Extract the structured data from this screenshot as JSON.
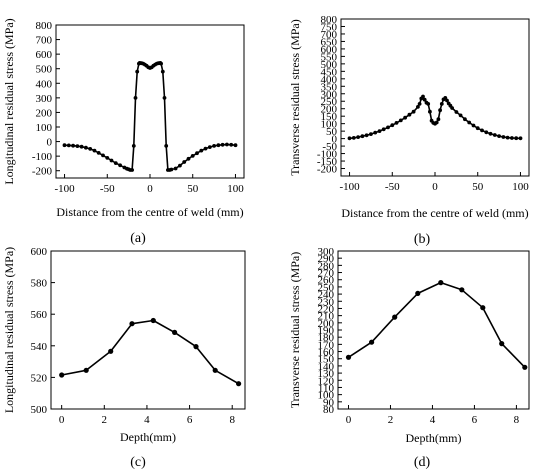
{
  "chart_data": [
    {
      "type": "line",
      "panel_label": "(a)",
      "xlabel": "Distance from the centre of weld (mm)",
      "ylabel": "Longitudinal residual stress (MPa)",
      "xlim": [
        -110,
        110
      ],
      "ylim": [
        -250,
        800
      ],
      "xticks": [
        -100,
        -50,
        0,
        50,
        100
      ],
      "yticks": [
        -200,
        -100,
        0,
        100,
        200,
        300,
        400,
        500,
        600,
        700,
        800
      ],
      "series": [
        {
          "x": [
            -100,
            -95,
            -90,
            -85,
            -80,
            -75,
            -70,
            -65,
            -60,
            -55,
            -50,
            -45,
            -40,
            -35,
            -30,
            -27,
            -25,
            -23,
            -21,
            -19,
            -17,
            -15,
            -13,
            -12,
            -10,
            -8,
            -6,
            -4,
            -2,
            0,
            2,
            4,
            6,
            8,
            10,
            12,
            13,
            15,
            17,
            19,
            21,
            23,
            25,
            30,
            35,
            40,
            45,
            50,
            55,
            60,
            65,
            70,
            75,
            80,
            85,
            90,
            95,
            100
          ],
          "y": [
            -25,
            -26,
            -28,
            -31,
            -35,
            -42,
            -50,
            -62,
            -78,
            -95,
            -112,
            -130,
            -148,
            -163,
            -178,
            -186,
            -190,
            -195,
            -195,
            -30,
            300,
            480,
            535,
            540,
            538,
            535,
            528,
            520,
            510,
            505,
            510,
            520,
            528,
            535,
            538,
            540,
            535,
            480,
            300,
            -30,
            -195,
            -195,
            -192,
            -185,
            -165,
            -140,
            -118,
            -98,
            -80,
            -62,
            -48,
            -38,
            -30,
            -25,
            -22,
            -20,
            -22,
            -25
          ]
        }
      ]
    },
    {
      "type": "line",
      "panel_label": "(b)",
      "xlabel": "Distance from the centre of weld (mm)",
      "ylabel": "Transverse residual stress (MPa)",
      "xlim": [
        -110,
        110
      ],
      "ylim": [
        -250,
        800
      ],
      "xticks": [
        -100,
        -50,
        0,
        50,
        100
      ],
      "yticks": [
        -200,
        -150,
        -100,
        -50,
        0,
        50,
        100,
        150,
        200,
        250,
        300,
        350,
        400,
        450,
        500,
        550,
        600,
        650,
        700,
        750,
        800
      ],
      "series": [
        {
          "x": [
            -100,
            -95,
            -90,
            -85,
            -80,
            -75,
            -70,
            -65,
            -60,
            -55,
            -50,
            -45,
            -40,
            -35,
            -30,
            -25,
            -20,
            -18,
            -16,
            -14,
            -12,
            -10,
            -8,
            -6,
            -4,
            -2,
            0,
            2,
            4,
            6,
            8,
            10,
            12,
            14,
            16,
            18,
            20,
            25,
            30,
            35,
            40,
            45,
            50,
            55,
            60,
            65,
            70,
            75,
            80,
            85,
            90,
            95,
            100
          ],
          "y": [
            2,
            5,
            10,
            16,
            22,
            30,
            40,
            50,
            62,
            75,
            90,
            105,
            122,
            140,
            160,
            180,
            212,
            232,
            268,
            282,
            260,
            240,
            232,
            180,
            120,
            105,
            100,
            108,
            130,
            190,
            232,
            262,
            272,
            255,
            235,
            220,
            205,
            178,
            155,
            130,
            108,
            88,
            70,
            55,
            42,
            32,
            24,
            17,
            11,
            7,
            4,
            3,
            2
          ]
        }
      ]
    },
    {
      "type": "line",
      "panel_label": "(c)",
      "xlabel": "Depth(mm)",
      "ylabel": "Longitudinal residual stress (MPa)",
      "xlim": [
        -0.5,
        8.6
      ],
      "ylim": [
        500,
        600
      ],
      "xticks": [
        0,
        2,
        4,
        6,
        8
      ],
      "yticks": [
        500,
        520,
        540,
        560,
        580,
        600
      ],
      "series": [
        {
          "x": [
            0,
            1.15,
            2.3,
            3.3,
            4.3,
            5.3,
            6.3,
            7.2,
            8.3
          ],
          "y": [
            521.5,
            524.5,
            536.5,
            554,
            556,
            548.5,
            539.5,
            524.5,
            516
          ]
        }
      ]
    },
    {
      "type": "line",
      "panel_label": "(d)",
      "xlabel": "Depth(mm)",
      "ylabel": "Transverse residual stress (MPa)",
      "xlim": [
        -0.5,
        8.6
      ],
      "ylim": [
        80,
        300
      ],
      "xticks": [
        0,
        2,
        4,
        6,
        8
      ],
      "yticks": [
        80,
        90,
        100,
        110,
        120,
        130,
        140,
        150,
        160,
        170,
        180,
        190,
        200,
        210,
        220,
        230,
        240,
        250,
        260,
        270,
        280,
        290,
        300
      ],
      "series": [
        {
          "x": [
            0,
            1.1,
            2.2,
            3.3,
            4.4,
            5.4,
            6.4,
            7.3,
            8.4
          ],
          "y": [
            152,
            173,
            208,
            241,
            256,
            246,
            221,
            171,
            138
          ]
        }
      ]
    }
  ]
}
